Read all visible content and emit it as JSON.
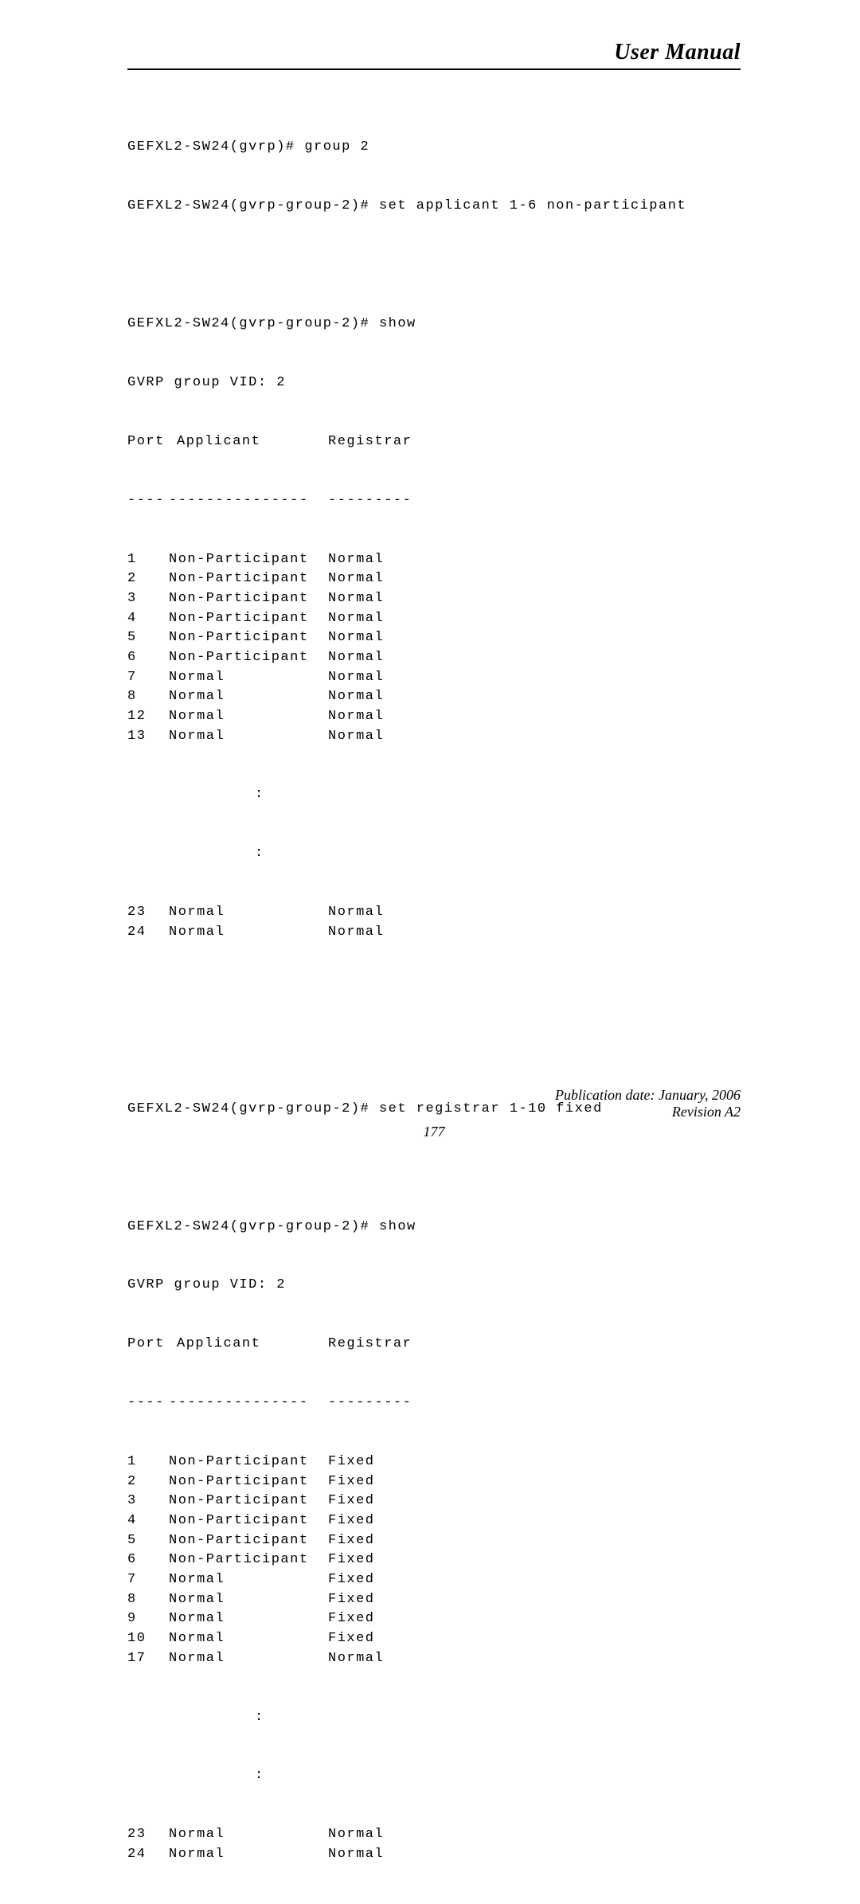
{
  "header": {
    "title": "User Manual"
  },
  "footer": {
    "pubdate": "Publication date: January, 2006",
    "revision": "Revision A2",
    "pagenum": "177"
  },
  "block1": {
    "cmd1": "GEFXL2-SW24(gvrp)# group 2",
    "cmd2": "GEFXL2-SW24(gvrp-group-2)# set applicant 1-6 non-participant",
    "show_cmd": "GEFXL2-SW24(gvrp-group-2)# show",
    "subtitle": "GVRP group VID: 2",
    "col_port": "Port",
    "col_app": "Applicant",
    "col_reg": "Registrar",
    "dash_port": "----",
    "dash_app": "---------------",
    "dash_reg": "---------",
    "rows": [
      {
        "port": "1",
        "app": "Non-Participant",
        "reg": "Normal"
      },
      {
        "port": "2",
        "app": "Non-Participant",
        "reg": "Normal"
      },
      {
        "port": "3",
        "app": "Non-Participant",
        "reg": "Normal"
      },
      {
        "port": "4",
        "app": "Non-Participant",
        "reg": "Normal"
      },
      {
        "port": "5",
        "app": "Non-Participant",
        "reg": "Normal"
      },
      {
        "port": "6",
        "app": "Non-Participant",
        "reg": "Normal"
      },
      {
        "port": "7",
        "app": "Normal",
        "reg": "Normal"
      },
      {
        "port": "8",
        "app": "Normal",
        "reg": "Normal"
      },
      {
        "port": "12",
        "app": "Normal",
        "reg": "Normal"
      },
      {
        "port": "13",
        "app": "Normal",
        "reg": "Normal"
      }
    ],
    "colon": ":",
    "tail": [
      {
        "port": "23",
        "app": "Normal",
        "reg": "Normal"
      },
      {
        "port": "24",
        "app": "Normal",
        "reg": "Normal"
      }
    ]
  },
  "block2": {
    "set_cmd": "GEFXL2-SW24(gvrp-group-2)# set registrar 1-10 fixed",
    "show_cmd": "GEFXL2-SW24(gvrp-group-2)# show",
    "subtitle": "GVRP group VID: 2",
    "col_port": "Port",
    "col_app": "Applicant",
    "col_reg": "Registrar",
    "dash_port": "----",
    "dash_app": "---------------",
    "dash_reg": "---------",
    "rows": [
      {
        "port": "1",
        "app": "Non-Participant",
        "reg": "Fixed"
      },
      {
        "port": "2",
        "app": "Non-Participant",
        "reg": "Fixed"
      },
      {
        "port": "3",
        "app": "Non-Participant",
        "reg": "Fixed"
      },
      {
        "port": "4",
        "app": "Non-Participant",
        "reg": "Fixed"
      },
      {
        "port": "5",
        "app": "Non-Participant",
        "reg": "Fixed"
      },
      {
        "port": "6",
        "app": "Non-Participant",
        "reg": "Fixed"
      },
      {
        "port": "7",
        "app": "Normal",
        "reg": "Fixed"
      },
      {
        "port": "8",
        "app": "Normal",
        "reg": "Fixed"
      },
      {
        "port": "9",
        "app": "Normal",
        "reg": "Fixed"
      },
      {
        "port": "10",
        "app": "Normal",
        "reg": "Fixed"
      },
      {
        "port": "17",
        "app": "Normal",
        "reg": "Normal"
      }
    ],
    "colon": ":",
    "tail": [
      {
        "port": "23",
        "app": "Normal",
        "reg": "Normal"
      },
      {
        "port": "24",
        "app": "Normal",
        "reg": "Normal"
      }
    ]
  }
}
